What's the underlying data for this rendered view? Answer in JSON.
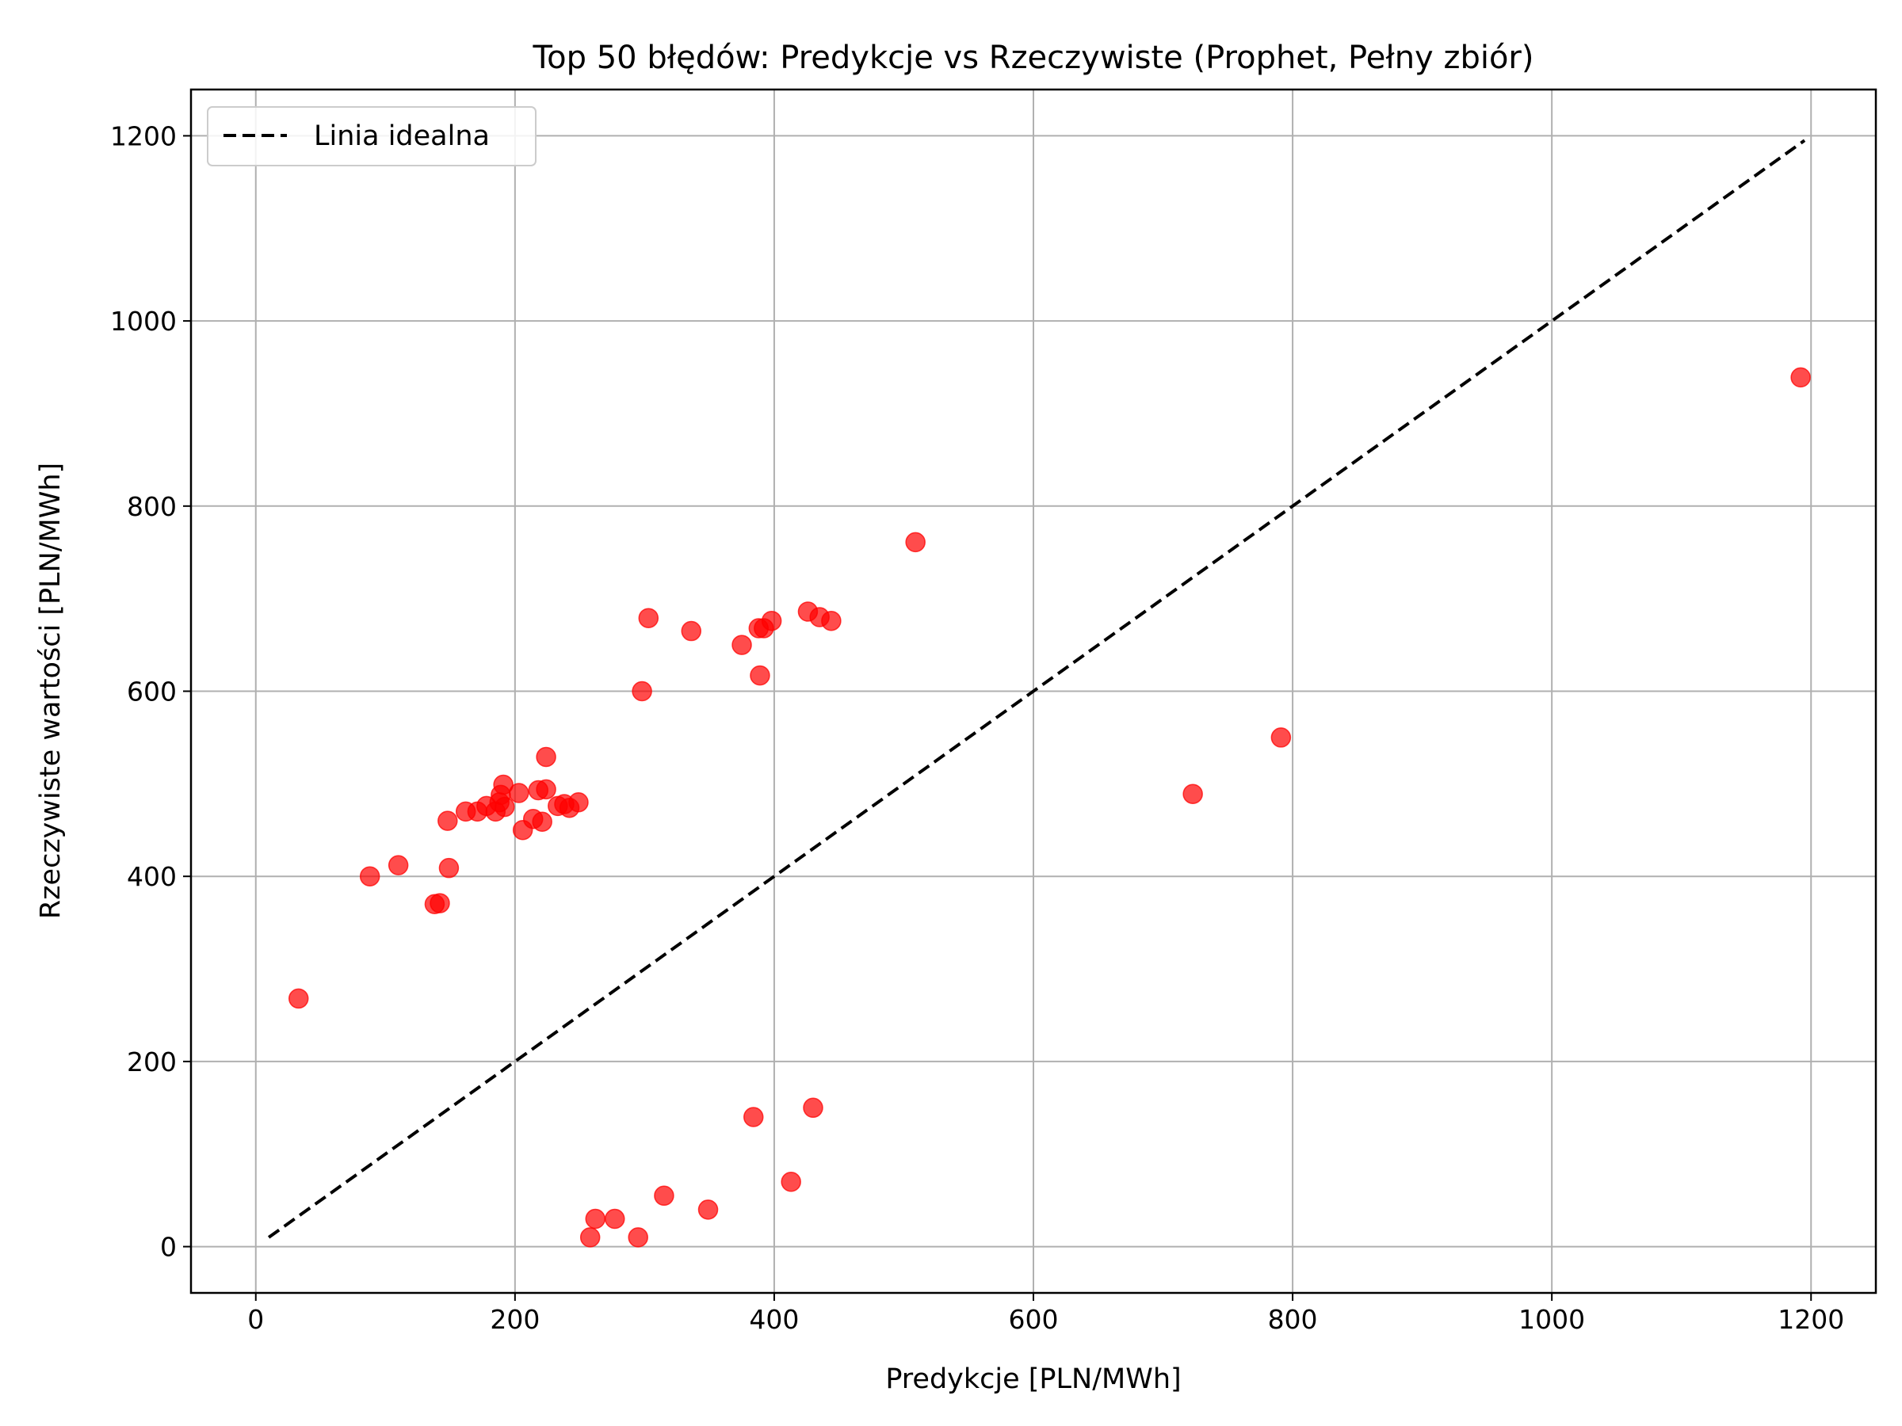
{
  "chart_data": {
    "type": "scatter",
    "title": "Top 50 błędów: Predykcje vs Rzeczywiste (Prophet, Pełny zbiór)",
    "xlabel": "Predykcje [PLN/MWh]",
    "ylabel": "Rzeczywiste wartości [PLN/MWh]",
    "xlim": [
      -50,
      1250
    ],
    "ylim": [
      -50,
      1250
    ],
    "xticks": [
      0,
      200,
      400,
      600,
      800,
      1000,
      1200
    ],
    "yticks": [
      0,
      200,
      400,
      600,
      800,
      1000,
      1200
    ],
    "grid": true,
    "legend_position": "top-left",
    "colors": {
      "points": "#ff0000",
      "ideal_line": "#000000"
    },
    "ideal_line": {
      "label": "Linia idealna",
      "x": [
        10,
        1195
      ],
      "y": [
        10,
        1195
      ]
    },
    "series": [
      {
        "points": [
          [
            33,
            268
          ],
          [
            88,
            400
          ],
          [
            110,
            412
          ],
          [
            138,
            370
          ],
          [
            142,
            371
          ],
          [
            148,
            460
          ],
          [
            149,
            409
          ],
          [
            162,
            470
          ],
          [
            171,
            470
          ],
          [
            178,
            476
          ],
          [
            185,
            470
          ],
          [
            188,
            480
          ],
          [
            189,
            488
          ],
          [
            191,
            499
          ],
          [
            192,
            475
          ],
          [
            203,
            490
          ],
          [
            206,
            450
          ],
          [
            214,
            462
          ],
          [
            218,
            493
          ],
          [
            221,
            459
          ],
          [
            224,
            494
          ],
          [
            224,
            529
          ],
          [
            233,
            476
          ],
          [
            238,
            478
          ],
          [
            242,
            474
          ],
          [
            249,
            480
          ],
          [
            258,
            10
          ],
          [
            262,
            30
          ],
          [
            277,
            30
          ],
          [
            295,
            10
          ],
          [
            298,
            600
          ],
          [
            303,
            679
          ],
          [
            315,
            55
          ],
          [
            336,
            665
          ],
          [
            349,
            40
          ],
          [
            375,
            650
          ],
          [
            384,
            140
          ],
          [
            389,
            617
          ],
          [
            388,
            668
          ],
          [
            392,
            668
          ],
          [
            398,
            676
          ],
          [
            413,
            70
          ],
          [
            426,
            686
          ],
          [
            430,
            150
          ],
          [
            435,
            680
          ],
          [
            444,
            676
          ],
          [
            509,
            761
          ],
          [
            723,
            489
          ],
          [
            791,
            550
          ],
          [
            1192,
            939
          ]
        ]
      }
    ]
  }
}
